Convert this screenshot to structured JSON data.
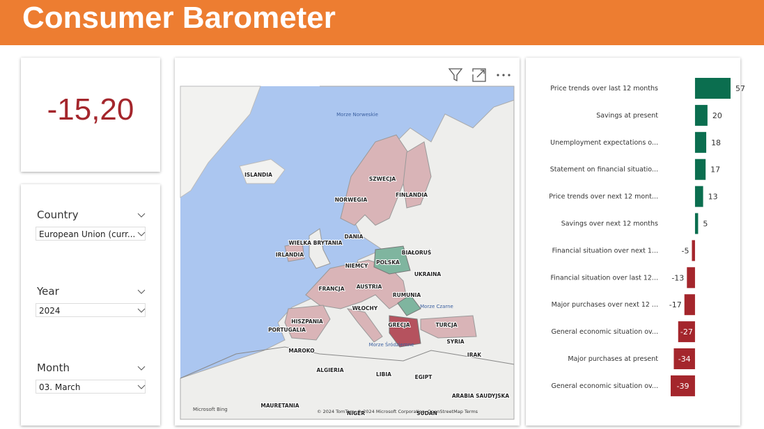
{
  "header": {
    "title": "Consumer Barometer"
  },
  "kpi": {
    "value": "-15,20"
  },
  "filters": [
    {
      "label": "Country",
      "selected": "European Union (curr..."
    },
    {
      "label": "Year",
      "selected": "2024"
    },
    {
      "label": "Month",
      "selected": "03. March"
    }
  ],
  "map": {
    "labels": [
      "Morze Norweskie",
      "ISLANDIA",
      "SZWECJA",
      "NORWEGIA",
      "FINLANDIA",
      "WIELKA BRYTANIA",
      "IRLANDIA",
      "DANIA",
      "BIAŁORUŚ",
      "POLSKA",
      "NIEMCY",
      "UKRAINA",
      "FRANCJA",
      "AUSTRIA",
      "RUMUNIA",
      "Morze Czarne",
      "WŁOCHY",
      "HISZPANIA",
      "PORTUGALIA",
      "GRECJA",
      "TURCJA",
      "Morze Śródziemne",
      "SYRIA",
      "MAROKO",
      "IRAK",
      "ALGIERIA",
      "LIBIA",
      "EGIPT",
      "MAURETANIA",
      "ARABIA SAUDYJSKA",
      "NIGER",
      "SUDAN"
    ],
    "brand": "Microsoft Bing",
    "copyright": "© 2024 TomTom, © 2024 Microsoft Corporation, OpenStreetMap Terms"
  },
  "chart_data": {
    "type": "bar",
    "orientation": "horizontal",
    "categories": [
      "Price trends over last 12 months",
      "Savings at present",
      "Unemployment expectations o...",
      "Statement on financial situatio...",
      "Price trends over next 12 mont...",
      "Savings over next 12 months",
      "Financial situation over next 1...",
      "Financial situation over last 12...",
      "Major purchases over next 12 ...",
      "General economic situation ov...",
      "Major purchases at present",
      "General economic situation ov..."
    ],
    "values": [
      57,
      20,
      18,
      17,
      13,
      5,
      -5,
      -13,
      -17,
      -27,
      -34,
      -39
    ],
    "positive_color": "#0b6e4f",
    "negative_color": "#a4262c"
  }
}
